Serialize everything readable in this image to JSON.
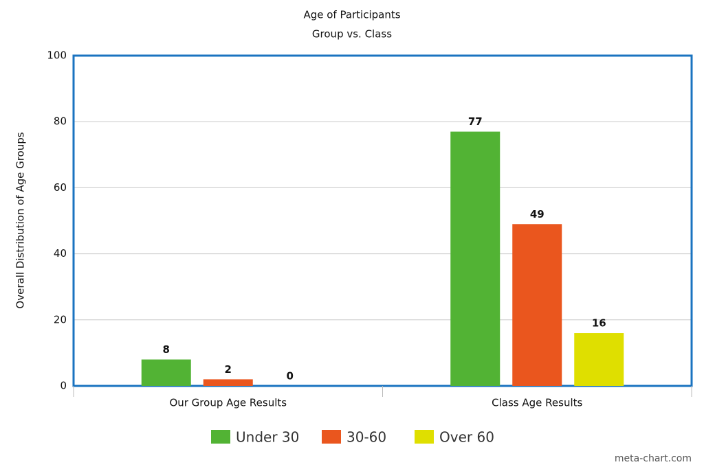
{
  "chart_data": {
    "type": "bar",
    "title": "Age of Participants",
    "subtitle": "Group vs. Class",
    "y_label": "Overall Distribution of Age Groups",
    "categories": [
      "Our Group Age Results",
      "Class Age Results"
    ],
    "series": [
      {
        "name": "Under 30",
        "color": "#52b334",
        "values": [
          8,
          77
        ]
      },
      {
        "name": "30-60",
        "color": "#ea561e",
        "values": [
          2,
          49
        ]
      },
      {
        "name": "Over 60",
        "color": "#dfdf00",
        "values": [
          0,
          16
        ]
      }
    ],
    "ylim": [
      0,
      100
    ],
    "yticks": [
      0,
      20,
      40,
      60,
      80,
      100
    ],
    "grid": true,
    "legend": "bottom",
    "watermark": "meta-chart.com"
  }
}
